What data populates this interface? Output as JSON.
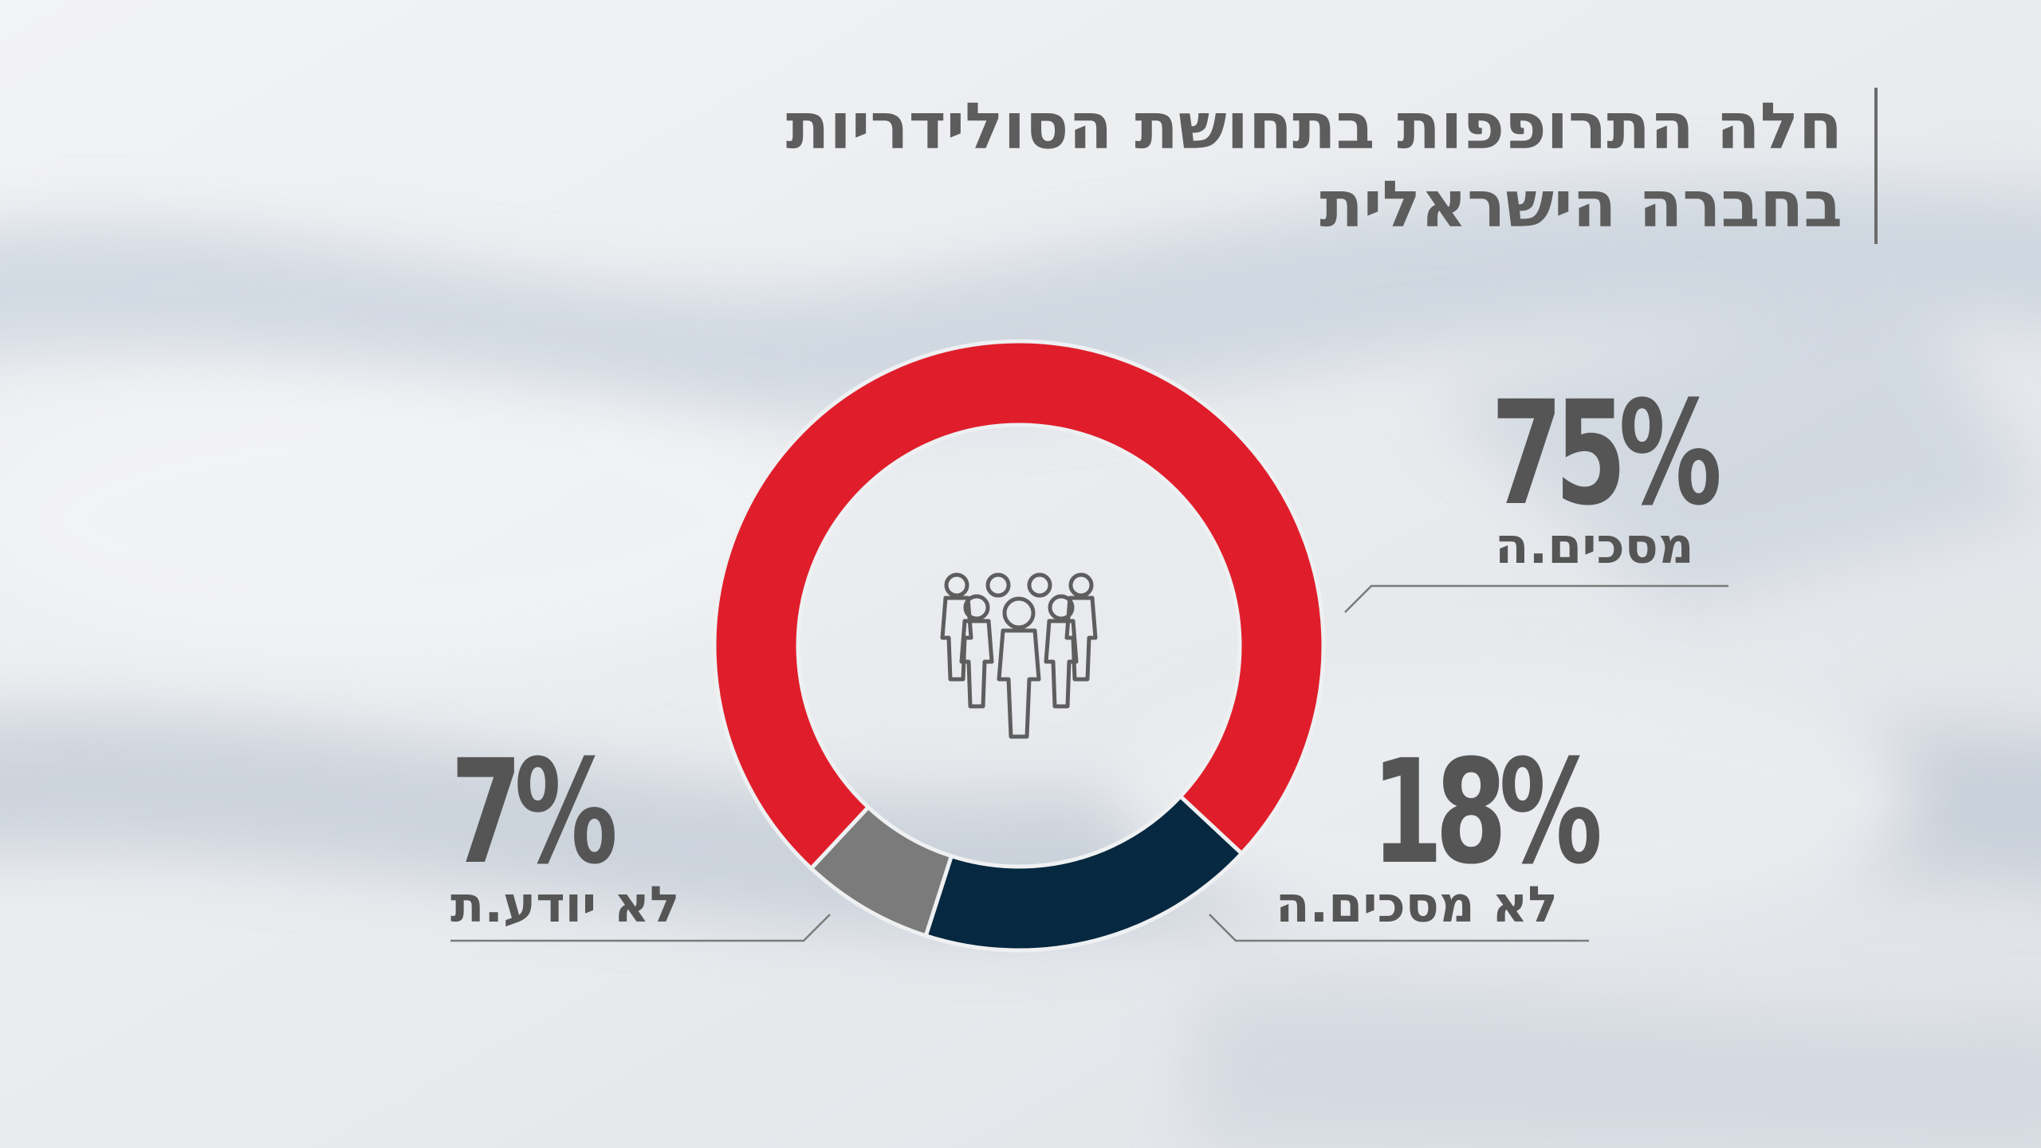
{
  "title": {
    "line1": "חלה התרופפות בתחושת הסולידריות",
    "line2": "בחברה הישראלית"
  },
  "colors": {
    "agree": "#e01e2b",
    "disagree": "#062840",
    "dont_know": "#7b7b7b",
    "text": "#555555",
    "leader": "#7a7a7a"
  },
  "icons": {
    "center": "people-group-icon"
  },
  "chart_data": {
    "type": "pie",
    "title": "חלה התרופפות בתחושת הסולידריות בחברה הישראלית",
    "legend": "none",
    "slices": [
      {
        "label": "מסכים.ה",
        "value": 75,
        "display": "75%",
        "color": "#e01e2b"
      },
      {
        "label": "לא מסכים.ה",
        "value": 18,
        "display": "18%",
        "color": "#062840"
      },
      {
        "label": "לא יודע.ת",
        "value": 7,
        "display": "7%",
        "color": "#7b7b7b"
      }
    ]
  }
}
